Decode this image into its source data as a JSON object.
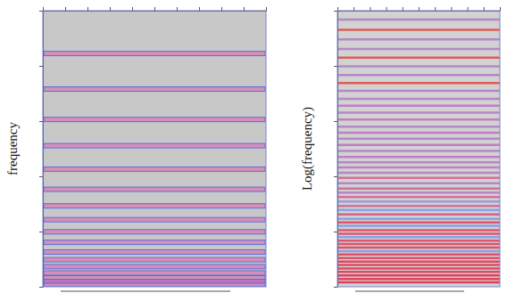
{
  "chart_data": [
    {
      "type": "spectrogram",
      "y_label": "frequency",
      "xlim": [
        0,
        10
      ],
      "xticks": [
        0,
        1,
        2,
        3,
        4,
        5,
        6,
        7,
        8,
        9,
        10
      ],
      "ylim": [
        0,
        100
      ],
      "yticks": [
        0,
        20,
        40,
        60,
        80,
        100
      ],
      "tick_labels": false,
      "color": "#e060a8",
      "values": [
        84.5,
        71.6,
        60.6,
        51.1,
        42.6,
        35.3,
        29.3,
        24.3,
        19.9,
        16.1,
        12.6,
        9.8,
        7.3,
        5.0,
        3.2,
        1.9,
        0.9
      ]
    },
    {
      "type": "spectrogram",
      "y_label": "Log(frequency)",
      "xlim": [
        0,
        10
      ],
      "xticks": [
        0,
        1,
        2,
        3,
        4,
        5,
        6,
        7,
        8,
        9,
        10
      ],
      "ylim": [
        0,
        100
      ],
      "yticks": [
        0,
        20,
        40,
        60,
        80,
        100
      ],
      "tick_labels": false,
      "log": "y",
      "values": [
        96.8,
        93.1,
        89.6,
        86.1,
        83.0,
        79.8,
        76.7,
        73.8,
        71.0,
        68.1,
        65.6,
        63.1,
        60.6,
        58.0,
        55.8,
        53.6,
        51.4,
        49.2,
        47.0,
        45.1,
        43.2,
        41.3,
        39.4,
        37.5,
        35.6,
        34.1,
        32.5,
        30.9,
        29.3,
        27.8,
        26.2,
        24.6,
        23.3,
        22.1,
        20.5,
        19.2,
        18.0,
        16.7,
        15.5,
        14.2,
        12.9,
        11.7,
        10.4,
        9.1,
        7.9,
        6.6,
        5.4,
        4.1,
        2.8,
        1.6
      ],
      "colors": [
        "#b07ac8",
        "#e04848",
        "#b07ac8",
        "#b07ac8",
        "#e04848",
        "#b07ac8",
        "#b07ac8",
        "#e04848",
        "#b07ac8",
        "#b07ac8",
        "#c070c0",
        "#b07ac8",
        "#c070c0",
        "#b07ac8",
        "#c070c0",
        "#b07ac8",
        "#c070c0",
        "#b07ac8",
        "#c070c0",
        "#b07ac8",
        "#c070c0",
        "#b07ac8",
        "#d06090",
        "#b07ac8",
        "#d06090",
        "#b07ac8",
        "#d06090",
        "#9090e0",
        "#d06090",
        "#8098e8",
        "#d05080",
        "#8098e8",
        "#e04060",
        "#8098e8",
        "#e04060",
        "#e04060",
        "#8098e8",
        "#e04060",
        "#e04060",
        "#e03858",
        "#8098e8",
        "#e03858",
        "#e03858",
        "#e03050",
        "#e03050",
        "#e03050",
        "#e03050",
        "#e02848",
        "#e02848",
        "#e02848"
      ]
    }
  ]
}
